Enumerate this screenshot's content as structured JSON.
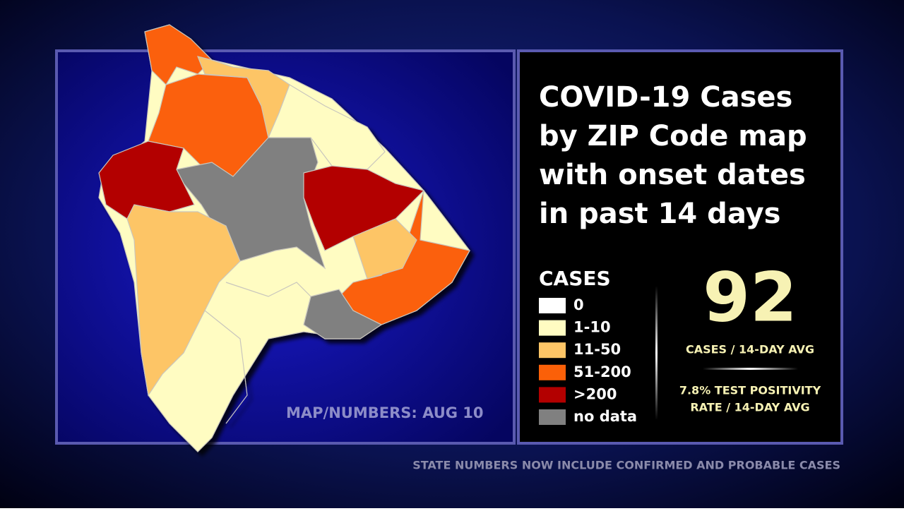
{
  "title_lines": [
    "COVID-19 Cases",
    "by ZIP Code map",
    "with onset dates",
    "in past 14 days"
  ],
  "legend": {
    "title": "CASES",
    "items": [
      {
        "label": "0",
        "color": "#ffffff"
      },
      {
        "label": "1-10",
        "color": "#fffcc2"
      },
      {
        "label": "11-50",
        "color": "#fdc566"
      },
      {
        "label": "51-200",
        "color": "#fb6008"
      },
      {
        "label": ">200",
        "color": "#b30000"
      },
      {
        "label": "no data",
        "color": "#808080"
      }
    ]
  },
  "stat": {
    "value": 92,
    "caption": "CASES / 14-DAY AVG"
  },
  "positivity_lines": [
    "7.8% TEST POSITIVITY",
    "RATE / 14-DAY AVG"
  ],
  "map_note": "MAP/NUMBERS: AUG 10",
  "footer": "STATE NUMBERS NOW INCLUDE CONFIRMED AND PROBABLE CASES"
}
